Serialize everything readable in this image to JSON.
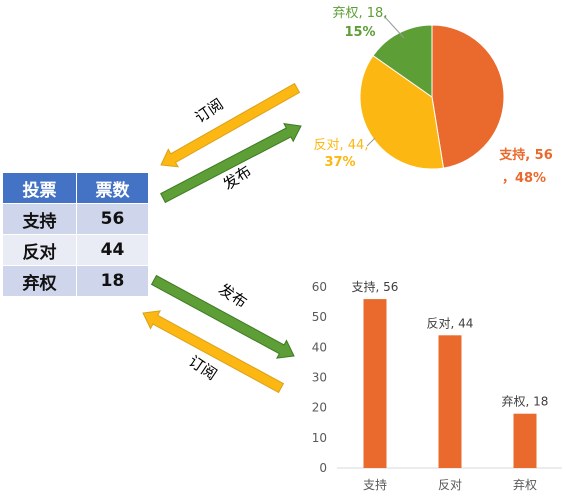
{
  "table": {
    "header": [
      "投票",
      "票数"
    ],
    "rows": [
      {
        "label": "支持",
        "value": "56"
      },
      {
        "label": "反对",
        "value": "44"
      },
      {
        "label": "弃权",
        "value": "18"
      }
    ]
  },
  "arrows": {
    "top_subscribe": "订阅",
    "top_publish": "发布",
    "bottom_publish": "发布",
    "bottom_subscribe": "订阅"
  },
  "colors": {
    "support": "#e96a2c",
    "oppose": "#fcb712",
    "abstain": "#5d9e36",
    "publish_arrow": "#5d9e36",
    "subscribe_arrow": "#fcb712",
    "table_header": "#4472c4"
  },
  "chart_data": [
    {
      "type": "pie",
      "categories": [
        "支持",
        "反对",
        "弃权"
      ],
      "values": [
        56,
        44,
        18
      ],
      "percent_labels": [
        "48%",
        "37%",
        "15%"
      ],
      "data_labels": [
        {
          "line1": "支持, 56",
          "line2": "，48%"
        },
        {
          "line1": "反对, 44,",
          "line2": "37%"
        },
        {
          "line1": "弃权, 18,",
          "line2": "15%"
        }
      ],
      "colors": [
        "#e96a2c",
        "#fcb712",
        "#5d9e36"
      ]
    },
    {
      "type": "bar",
      "categories": [
        "支持",
        "反对",
        "弃权"
      ],
      "values": [
        56,
        44,
        18
      ],
      "data_labels": [
        "支持, 56",
        "反对, 44",
        "弃权, 18"
      ],
      "ylim": [
        0,
        60
      ],
      "yticks": [
        "0",
        "10",
        "20",
        "30",
        "40",
        "50",
        "60"
      ],
      "grid": false,
      "color": "#e96a2c"
    }
  ]
}
